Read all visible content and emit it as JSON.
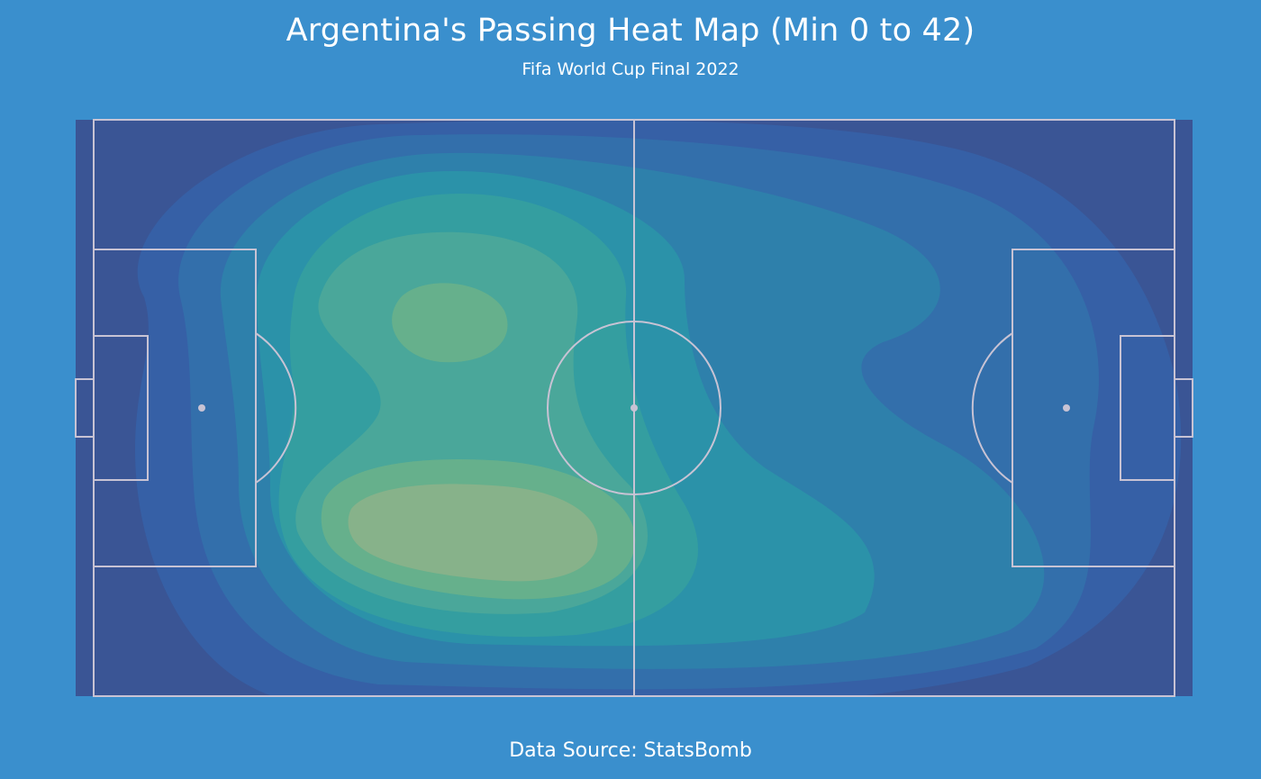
{
  "title": "Argentina's Passing Heat Map (Min 0 to 42)",
  "subtitle": "Fifa World Cup Final 2022",
  "footer": "Data Source: StatsBomb",
  "colors": {
    "background": "#3a8fcd",
    "line": "#c8c3d4",
    "levels": [
      "#3a5595",
      "#3660a6",
      "#336fab",
      "#2e80ab",
      "#2b92a9",
      "#349ea0",
      "#4aa79a",
      "#66b08c",
      "#87b28a"
    ]
  },
  "chart_data": {
    "type": "heatmap",
    "pitch": {
      "length": 120,
      "width": 80,
      "orientation": "horizontal"
    },
    "attack_direction": "left-to-right",
    "levels": 9,
    "density_peaks": [
      {
        "x": 50,
        "y": 59,
        "relative_density": 1.0
      },
      {
        "x": 48,
        "y": 29,
        "relative_density": 0.82
      },
      {
        "x": 65,
        "y": 50,
        "relative_density": 0.55
      },
      {
        "x": 95,
        "y": 40,
        "relative_density": 0.35
      }
    ]
  }
}
